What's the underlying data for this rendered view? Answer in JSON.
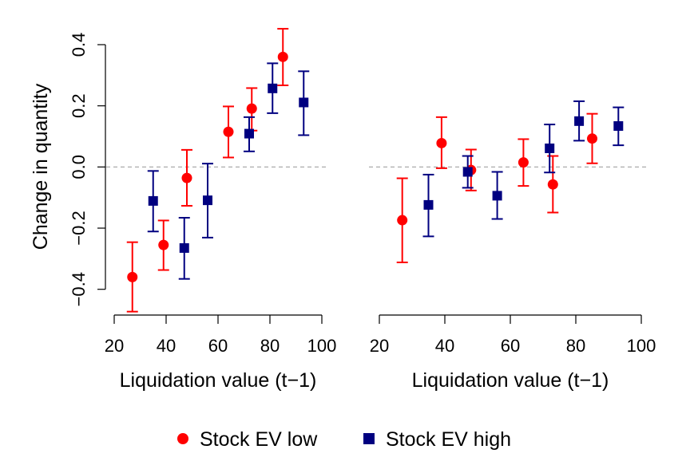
{
  "chart_data": [
    {
      "type": "scatter",
      "panel": "left",
      "title": "",
      "xlabel": "Liquidation value (t−1)",
      "ylabel": "Change in quantity",
      "xlim": [
        20,
        100
      ],
      "ylim": [
        -0.4,
        0.4
      ],
      "xticks": [
        20,
        40,
        60,
        80,
        100
      ],
      "xtick_labels": [
        "20",
        "40",
        "60",
        "80",
        "100"
      ],
      "yticks": [
        -0.4,
        -0.2,
        0.0,
        0.2,
        0.4
      ],
      "ytick_labels": [
        "−0.4",
        "−0.2",
        "0.0",
        "0.2",
        "0.4"
      ],
      "show_y_axis": true,
      "reference_line": {
        "y": 0.0,
        "style": "dashed",
        "color": "#aaaaaa"
      },
      "grid": false,
      "series": [
        {
          "name": "Stock EV low",
          "marker": "circle",
          "color": "#ff0000",
          "points": [
            {
              "x": 27,
              "y": -0.36,
              "lower": -0.473,
              "upper": -0.246
            },
            {
              "x": 39,
              "y": -0.255,
              "lower": -0.337,
              "upper": -0.175
            },
            {
              "x": 48,
              "y": -0.036,
              "lower": -0.127,
              "upper": 0.056
            },
            {
              "x": 64,
              "y": 0.115,
              "lower": 0.031,
              "upper": 0.198
            },
            {
              "x": 73,
              "y": 0.191,
              "lower": 0.119,
              "upper": 0.258
            },
            {
              "x": 85,
              "y": 0.36,
              "lower": 0.267,
              "upper": 0.452
            }
          ]
        },
        {
          "name": "Stock EV high",
          "marker": "square",
          "color": "#000080",
          "points": [
            {
              "x": 35,
              "y": -0.111,
              "lower": -0.211,
              "upper": -0.013
            },
            {
              "x": 47,
              "y": -0.265,
              "lower": -0.366,
              "upper": -0.166
            },
            {
              "x": 56,
              "y": -0.109,
              "lower": -0.231,
              "upper": 0.011
            },
            {
              "x": 72,
              "y": 0.109,
              "lower": 0.051,
              "upper": 0.163
            },
            {
              "x": 81,
              "y": 0.257,
              "lower": 0.176,
              "upper": 0.339
            },
            {
              "x": 93,
              "y": 0.211,
              "lower": 0.104,
              "upper": 0.313
            }
          ]
        }
      ]
    },
    {
      "type": "scatter",
      "panel": "right",
      "title": "",
      "xlabel": "Liquidation value (t−1)",
      "ylabel": "",
      "xlim": [
        20,
        100
      ],
      "ylim": [
        -0.4,
        0.4
      ],
      "xticks": [
        20,
        40,
        60,
        80,
        100
      ],
      "xtick_labels": [
        "20",
        "40",
        "60",
        "80",
        "100"
      ],
      "yticks": [],
      "ytick_labels": [],
      "show_y_axis": false,
      "reference_line": {
        "y": 0.0,
        "style": "dashed",
        "color": "#aaaaaa"
      },
      "grid": false,
      "series": [
        {
          "name": "Stock EV low",
          "marker": "circle",
          "color": "#ff0000",
          "points": [
            {
              "x": 27,
              "y": -0.174,
              "lower": -0.312,
              "upper": -0.037
            },
            {
              "x": 39,
              "y": 0.078,
              "lower": -0.004,
              "upper": 0.163
            },
            {
              "x": 48,
              "y": -0.01,
              "lower": -0.077,
              "upper": 0.057
            },
            {
              "x": 64,
              "y": 0.015,
              "lower": -0.062,
              "upper": 0.091
            },
            {
              "x": 73,
              "y": -0.057,
              "lower": -0.149,
              "upper": 0.036
            },
            {
              "x": 85,
              "y": 0.093,
              "lower": 0.012,
              "upper": 0.174
            }
          ]
        },
        {
          "name": "Stock EV high",
          "marker": "square",
          "color": "#000080",
          "points": [
            {
              "x": 35,
              "y": -0.124,
              "lower": -0.227,
              "upper": -0.025
            },
            {
              "x": 47,
              "y": -0.016,
              "lower": -0.068,
              "upper": 0.036
            },
            {
              "x": 56,
              "y": -0.094,
              "lower": -0.17,
              "upper": -0.016
            },
            {
              "x": 72,
              "y": 0.061,
              "lower": -0.018,
              "upper": 0.139
            },
            {
              "x": 81,
              "y": 0.15,
              "lower": 0.086,
              "upper": 0.215
            },
            {
              "x": 93,
              "y": 0.134,
              "lower": 0.071,
              "upper": 0.195
            }
          ]
        }
      ]
    }
  ],
  "legend": {
    "placement": "bottom-center",
    "items": [
      {
        "label": "Stock EV low",
        "marker": "circle",
        "color": "#ff0000"
      },
      {
        "label": "Stock EV high",
        "marker": "square",
        "color": "#000080"
      }
    ]
  }
}
